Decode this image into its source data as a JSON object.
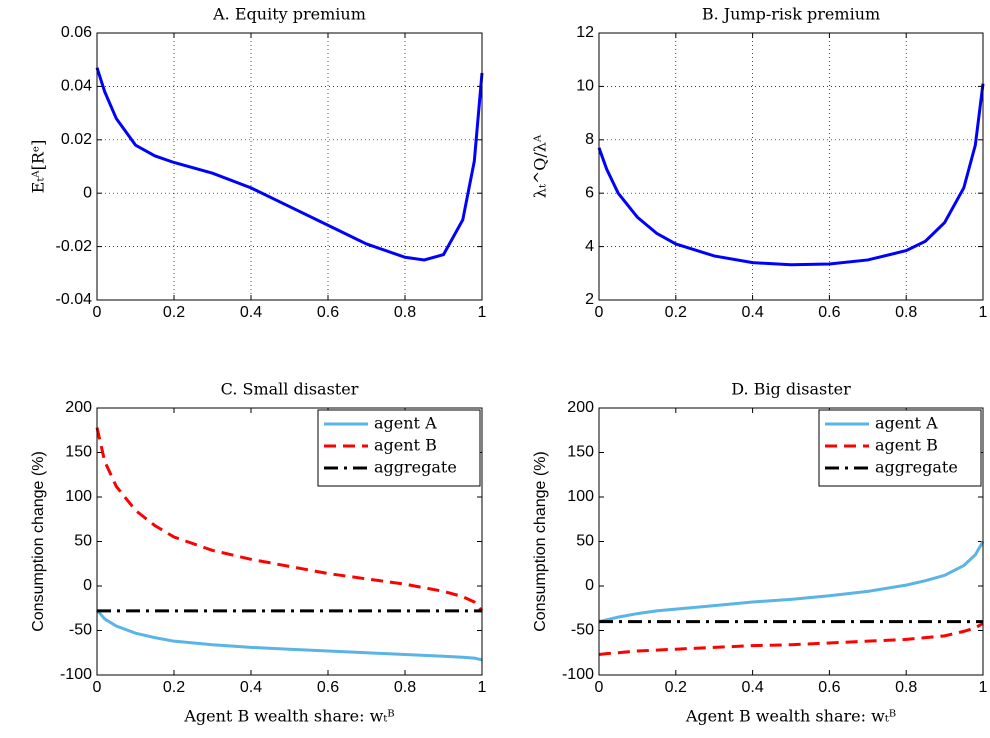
{
  "chart_data": [
    {
      "type": "line",
      "title": "A.  Equity premium",
      "ylabel": "Eₜᴬ[Rᵉ]",
      "x": [
        0,
        0.02,
        0.05,
        0.1,
        0.15,
        0.2,
        0.3,
        0.4,
        0.5,
        0.6,
        0.7,
        0.8,
        0.85,
        0.9,
        0.95,
        0.98,
        1
      ],
      "values": [
        0.047,
        0.038,
        0.028,
        0.018,
        0.014,
        0.0115,
        0.0075,
        0.002,
        -0.005,
        -0.012,
        -0.019,
        -0.024,
        -0.025,
        -0.023,
        -0.01,
        0.012,
        0.045
      ],
      "color": "#0000ff",
      "xlim": [
        0,
        1
      ],
      "xticks": [
        0,
        0.2,
        0.4,
        0.6,
        0.8,
        1
      ],
      "ylim": [
        -0.04,
        0.06
      ],
      "yticks": [
        -0.04,
        -0.02,
        0,
        0.02,
        0.04,
        0.06
      ],
      "grid": true
    },
    {
      "type": "line",
      "title": "B.  Jump-risk premium",
      "ylabel": "λₜ^Q/λᴬ",
      "x": [
        0,
        0.02,
        0.05,
        0.1,
        0.15,
        0.2,
        0.3,
        0.4,
        0.5,
        0.6,
        0.7,
        0.8,
        0.85,
        0.9,
        0.95,
        0.98,
        1
      ],
      "values": [
        7.7,
        6.9,
        6.0,
        5.1,
        4.5,
        4.1,
        3.65,
        3.4,
        3.32,
        3.35,
        3.5,
        3.85,
        4.2,
        4.9,
        6.2,
        7.8,
        10.1
      ],
      "color": "#0000ff",
      "xlim": [
        0,
        1
      ],
      "xticks": [
        0,
        0.2,
        0.4,
        0.6,
        0.8,
        1
      ],
      "ylim": [
        2,
        12
      ],
      "yticks": [
        2,
        4,
        6,
        8,
        10,
        12
      ],
      "grid": true
    },
    {
      "type": "line",
      "title": "C.  Small disaster",
      "ylabel": "Consumption change (%)",
      "xlabel": "Agent B wealth share: wₜᴮ",
      "x": [
        0,
        0.02,
        0.05,
        0.1,
        0.15,
        0.2,
        0.3,
        0.4,
        0.5,
        0.6,
        0.7,
        0.8,
        0.85,
        0.9,
        0.95,
        0.98,
        1
      ],
      "series": [
        {
          "name": "agent A",
          "color": "#5ab4e5",
          "linestyle": "solid",
          "values": [
            -27,
            -37,
            -45,
            -53,
            -58,
            -62,
            -66,
            -69,
            -71,
            -73,
            -75,
            -77,
            -78,
            -79,
            -80,
            -81,
            -83
          ]
        },
        {
          "name": "agent B",
          "color": "#ff0000",
          "linestyle": "dashed",
          "values": [
            178,
            140,
            112,
            85,
            68,
            55,
            40,
            30,
            22,
            14,
            8,
            2,
            -2,
            -6,
            -12,
            -18,
            -28
          ]
        },
        {
          "name": "aggregate",
          "color": "#000000",
          "linestyle": "dashdot",
          "values": [
            -28,
            -28,
            -28,
            -28,
            -28,
            -28,
            -28,
            -28,
            -28,
            -28,
            -28,
            -28,
            -28,
            -28,
            -28,
            -28,
            -28
          ]
        }
      ],
      "xlim": [
        0,
        1
      ],
      "xticks": [
        0,
        0.2,
        0.4,
        0.6,
        0.8,
        1
      ],
      "ylim": [
        -100,
        200
      ],
      "yticks": [
        -100,
        -50,
        0,
        50,
        100,
        150,
        200
      ],
      "grid": false,
      "legend": "upper right"
    },
    {
      "type": "line",
      "title": "D.  Big disaster",
      "ylabel": "Consumption change (%)",
      "xlabel": "Agent B wealth share: wₜᴮ",
      "x": [
        0,
        0.02,
        0.05,
        0.1,
        0.15,
        0.2,
        0.3,
        0.4,
        0.5,
        0.6,
        0.7,
        0.8,
        0.85,
        0.9,
        0.95,
        0.98,
        1
      ],
      "series": [
        {
          "name": "agent A",
          "color": "#5ab4e5",
          "linestyle": "solid",
          "values": [
            -40,
            -38,
            -35,
            -31,
            -28,
            -26,
            -22,
            -18,
            -15,
            -11,
            -6,
            1,
            6,
            12,
            23,
            35,
            50
          ]
        },
        {
          "name": "agent B",
          "color": "#ff0000",
          "linestyle": "dashed",
          "values": [
            -77,
            -76,
            -75,
            -73,
            -72,
            -71,
            -69,
            -67,
            -66,
            -64,
            -62,
            -60,
            -58,
            -56,
            -51,
            -47,
            -42
          ]
        },
        {
          "name": "aggregate",
          "color": "#000000",
          "linestyle": "dashdot",
          "values": [
            -40,
            -40,
            -40,
            -40,
            -40,
            -40,
            -40,
            -40,
            -40,
            -40,
            -40,
            -40,
            -40,
            -40,
            -40,
            -40,
            -40
          ]
        }
      ],
      "xlim": [
        0,
        1
      ],
      "xticks": [
        0,
        0.2,
        0.4,
        0.6,
        0.8,
        1
      ],
      "ylim": [
        -100,
        200
      ],
      "yticks": [
        -100,
        -50,
        0,
        50,
        100,
        150,
        200
      ],
      "grid": false,
      "legend": "upper right"
    }
  ]
}
